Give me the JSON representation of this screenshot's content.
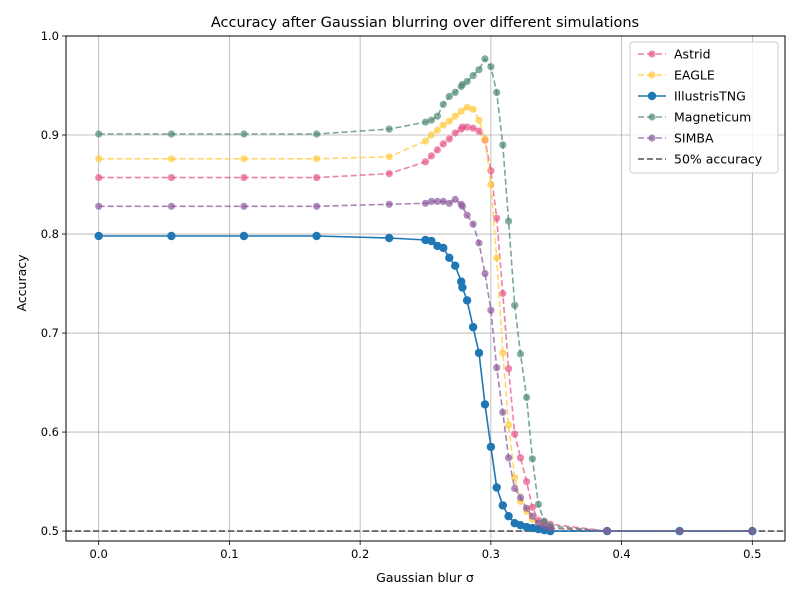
{
  "chart_data": {
    "type": "line",
    "title": "Accuracy after Gaussian blurring over different simulations",
    "xlabel": "Gaussian blur σ",
    "ylabel": "Accuracy",
    "xlim": [
      -0.025,
      0.525
    ],
    "ylim": [
      0.49,
      1.0
    ],
    "xticks": [
      0.0,
      0.1,
      0.2,
      0.3,
      0.4,
      0.5
    ],
    "xtick_labels": [
      "0.0",
      "0.1",
      "0.2",
      "0.3",
      "0.4",
      "0.5"
    ],
    "yticks": [
      0.5,
      0.6,
      0.7,
      0.8,
      0.9,
      1.0
    ],
    "ytick_labels": [
      "0.5",
      "0.6",
      "0.7",
      "0.8",
      "0.9",
      "1.0"
    ],
    "grid": true,
    "legend_position": "top-right",
    "reference_line": {
      "name": "50% accuracy",
      "y": 0.5,
      "color": "#555555",
      "style": "dashed"
    },
    "series": [
      {
        "name": "Astrid",
        "color": "#e7578c",
        "style": "dashed",
        "x": [
          0.0,
          0.0556,
          0.1111,
          0.1667,
          0.2222,
          0.25,
          0.2545,
          0.2591,
          0.2636,
          0.2682,
          0.2727,
          0.2773,
          0.2782,
          0.2818,
          0.2864,
          0.2909,
          0.2955,
          0.3,
          0.3045,
          0.3091,
          0.3136,
          0.3182,
          0.3227,
          0.3273,
          0.3318,
          0.3364,
          0.3409,
          0.3455,
          0.3889,
          0.4444,
          0.5
        ],
        "y": [
          0.857,
          0.857,
          0.857,
          0.857,
          0.861,
          0.873,
          0.879,
          0.885,
          0.891,
          0.896,
          0.902,
          0.906,
          0.908,
          0.908,
          0.907,
          0.904,
          0.895,
          0.864,
          0.816,
          0.74,
          0.664,
          0.598,
          0.574,
          0.55,
          0.524,
          0.511,
          0.509,
          0.507,
          0.5,
          0.5,
          0.5
        ]
      },
      {
        "name": "EAGLE",
        "color": "#ffc93a",
        "style": "dashed",
        "x": [
          0.0,
          0.0556,
          0.1111,
          0.1667,
          0.2222,
          0.25,
          0.2545,
          0.2591,
          0.2636,
          0.2682,
          0.2727,
          0.2773,
          0.2818,
          0.2864,
          0.2909,
          0.2955,
          0.3,
          0.3045,
          0.3091,
          0.3136,
          0.3182,
          0.3227,
          0.3273,
          0.3318,
          0.3364,
          0.3409,
          0.3455,
          0.3889,
          0.4444,
          0.5
        ],
        "y": [
          0.876,
          0.876,
          0.876,
          0.876,
          0.878,
          0.894,
          0.9,
          0.905,
          0.91,
          0.914,
          0.919,
          0.924,
          0.928,
          0.926,
          0.915,
          0.896,
          0.85,
          0.776,
          0.68,
          0.607,
          0.554,
          0.53,
          0.52,
          0.512,
          0.507,
          0.505,
          0.503,
          0.5,
          0.5,
          0.5
        ]
      },
      {
        "name": "IllustrisTNG",
        "color": "#1f77b4",
        "style": "solid",
        "x": [
          0.0,
          0.0556,
          0.1111,
          0.1667,
          0.2222,
          0.25,
          0.2545,
          0.2591,
          0.2636,
          0.2682,
          0.2727,
          0.2773,
          0.2782,
          0.2818,
          0.2864,
          0.2909,
          0.2955,
          0.3,
          0.3045,
          0.3091,
          0.3136,
          0.3182,
          0.3227,
          0.3273,
          0.3318,
          0.3364,
          0.3409,
          0.3455,
          0.3889,
          0.4444,
          0.5
        ],
        "y": [
          0.798,
          0.798,
          0.798,
          0.798,
          0.796,
          0.794,
          0.793,
          0.788,
          0.786,
          0.776,
          0.768,
          0.752,
          0.746,
          0.733,
          0.706,
          0.68,
          0.628,
          0.585,
          0.544,
          0.526,
          0.515,
          0.508,
          0.506,
          0.504,
          0.503,
          0.502,
          0.501,
          0.5,
          0.5,
          0.5,
          0.5
        ]
      },
      {
        "name": "Magneticum",
        "color": "#4e8a76",
        "style": "dashed",
        "x": [
          0.0,
          0.0556,
          0.1111,
          0.1667,
          0.2222,
          0.25,
          0.2545,
          0.2591,
          0.2636,
          0.2682,
          0.2727,
          0.2773,
          0.2782,
          0.2818,
          0.2864,
          0.2909,
          0.2955,
          0.3,
          0.3045,
          0.3091,
          0.3136,
          0.3182,
          0.3227,
          0.3273,
          0.3318,
          0.3364,
          0.3409,
          0.3455,
          0.3889,
          0.4444,
          0.5
        ],
        "y": [
          0.901,
          0.901,
          0.901,
          0.901,
          0.906,
          0.913,
          0.915,
          0.919,
          0.931,
          0.939,
          0.943,
          0.949,
          0.951,
          0.954,
          0.96,
          0.966,
          0.977,
          0.969,
          0.943,
          0.89,
          0.813,
          0.728,
          0.679,
          0.635,
          0.573,
          0.527,
          0.51,
          0.505,
          0.5,
          0.5,
          0.5
        ]
      },
      {
        "name": "SIMBA",
        "color": "#8b5a9e",
        "style": "dashed",
        "x": [
          0.0,
          0.0556,
          0.1111,
          0.1667,
          0.2222,
          0.25,
          0.2545,
          0.2591,
          0.2636,
          0.2682,
          0.2727,
          0.2773,
          0.2782,
          0.2818,
          0.2864,
          0.2909,
          0.2955,
          0.3,
          0.3045,
          0.3091,
          0.3136,
          0.3182,
          0.3227,
          0.3273,
          0.3318,
          0.3364,
          0.3409,
          0.3455,
          0.3889,
          0.4444,
          0.5
        ],
        "y": [
          0.828,
          0.828,
          0.828,
          0.828,
          0.83,
          0.831,
          0.833,
          0.833,
          0.833,
          0.831,
          0.835,
          0.83,
          0.828,
          0.819,
          0.81,
          0.791,
          0.76,
          0.723,
          0.665,
          0.62,
          0.574,
          0.543,
          0.534,
          0.523,
          0.515,
          0.508,
          0.505,
          0.503,
          0.5,
          0.5,
          0.5
        ]
      }
    ]
  }
}
